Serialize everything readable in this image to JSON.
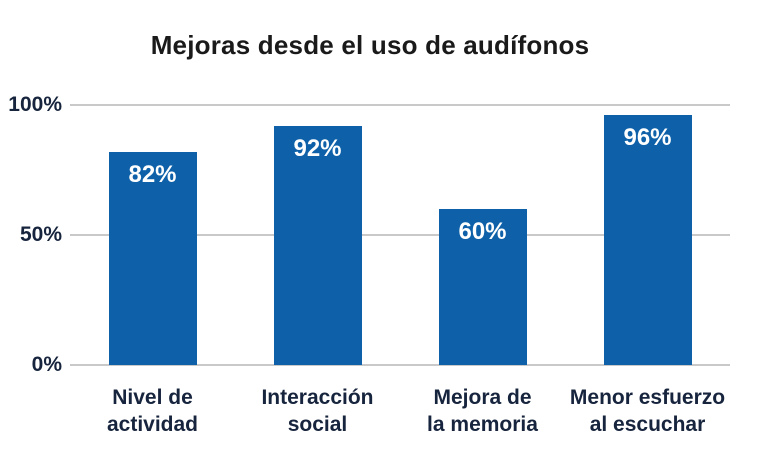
{
  "chart_data": {
    "type": "bar",
    "title": "Mejoras desde el uso de audífonos",
    "categories": [
      "Nivel de\nactividad",
      "Interacción\nsocial",
      "Mejora de\nla memoria",
      "Menor esfuerzo\nal escuchar"
    ],
    "values": [
      82,
      92,
      60,
      96
    ],
    "value_labels": [
      "82%",
      "92%",
      "60%",
      "96%"
    ],
    "xlabel": "",
    "ylabel": "",
    "ylim": [
      0,
      100
    ],
    "yticks": [
      {
        "value": 100,
        "label": "100%"
      },
      {
        "value": 50,
        "label": "50%"
      },
      {
        "value": 0,
        "label": "0%"
      }
    ],
    "grid": "horizontal lines at 0, 50, 100",
    "legend": "none"
  },
  "colors": {
    "bar": "#0e61a9",
    "bar_label": "#ffffff",
    "axis_text": "#17243d",
    "title_text": "#1a1a1a",
    "gridline": "#c9c9c9",
    "background": "#ffffff"
  }
}
